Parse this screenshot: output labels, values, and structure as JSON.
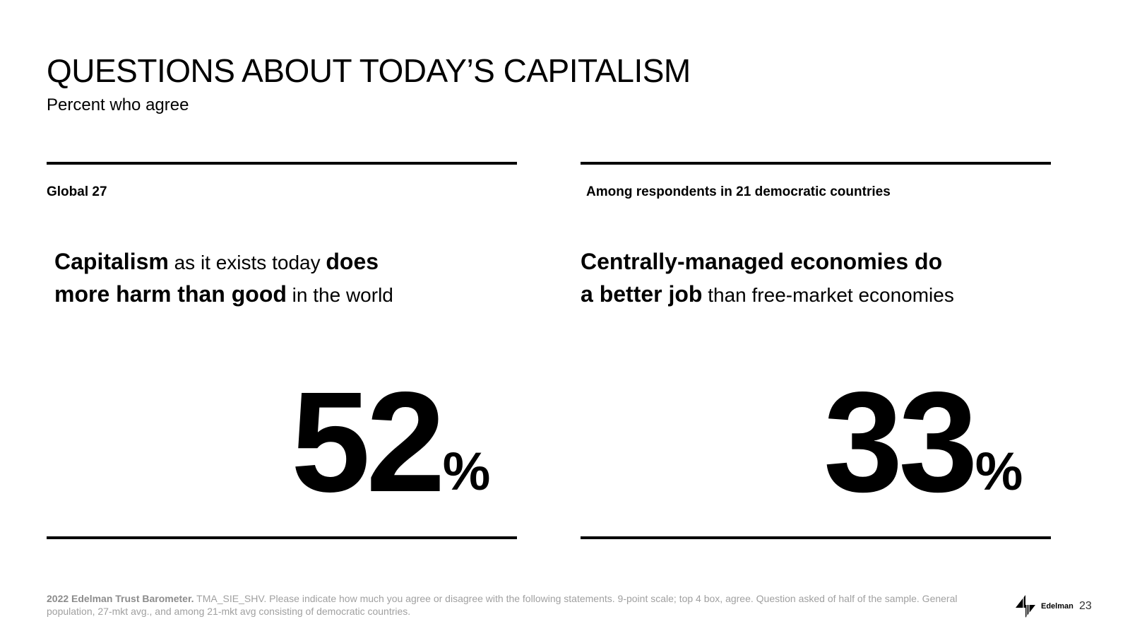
{
  "slide": {
    "title": "QUESTIONS ABOUT TODAY’S CAPITALISM",
    "subtitle": "Percent who agree"
  },
  "panels": [
    {
      "label": "Global 27",
      "statement_parts": [
        "Capitalism",
        " as it exists today ",
        "does",
        "more harm than good",
        " in the world"
      ],
      "value": "52",
      "unit": "%"
    },
    {
      "label": "Among respondents in 21 democratic countries",
      "statement_parts": [
        "Centrally-managed economies do",
        "a better job",
        " than free-market economies"
      ],
      "value": "33",
      "unit": "%"
    }
  ],
  "footer": {
    "source_bold": "2022 Edelman Trust Barometer.",
    "note": " TMA_SIE_SHV. Please indicate how much you agree or disagree with the following statements. 9-point scale; top 4 box, agree. Question asked of half of the sample. General population, 27-mkt avg., and among 21-mkt avg consisting of democratic countries.",
    "brand": "Edelman",
    "logo_icon": "edelman-logo-icon",
    "page_number": "23"
  }
}
